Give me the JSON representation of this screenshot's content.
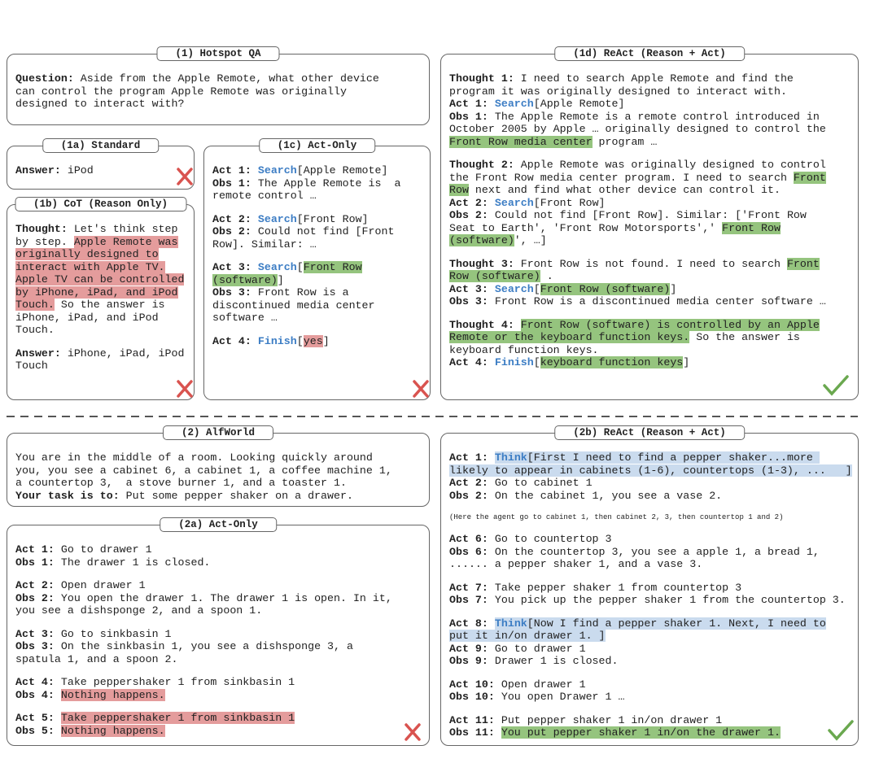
{
  "panels": {
    "hotspot_qa": {
      "title": "(1) Hotspot QA",
      "paragraphs": [
        [
          [
            {
              "text": "Question:",
              "bold": true
            },
            " Aside from the Apple Remote, what other device"
          ],
          [
            "can control the program Apple Remote was originally"
          ],
          [
            "designed to interact with?"
          ]
        ]
      ]
    },
    "standard": {
      "title": "(1a) Standard",
      "paragraphs": [
        [
          [
            {
              "text": "Answer:",
              "bold": true
            },
            " iPod"
          ]
        ]
      ]
    },
    "cot": {
      "title": "(1b) CoT (Reason Only)",
      "paragraphs": [
        [
          [
            {
              "text": "Thought:",
              "bold": true
            },
            " Let's think step"
          ],
          [
            "by step. ",
            {
              "text": "Apple Remote was",
              "highlight": "red"
            }
          ],
          [
            {
              "text": "originally designed to",
              "highlight": "red"
            }
          ],
          [
            {
              "text": "interact with Apple TV.",
              "highlight": "red"
            }
          ],
          [
            {
              "text": "Apple TV can be controlled",
              "highlight": "red"
            }
          ],
          [
            {
              "text": "by iPhone, iPad, and iPod",
              "highlight": "red"
            }
          ],
          [
            {
              "text": "Touch.",
              "highlight": "red"
            },
            " So the answer is"
          ],
          [
            "iPhone, iPad, and iPod"
          ],
          [
            "Touch."
          ]
        ],
        [
          [
            {
              "text": "Answer:",
              "bold": true
            },
            " iPhone, iPad, iPod"
          ],
          [
            "Touch"
          ]
        ]
      ]
    },
    "act_only_qa": {
      "title": "(1c) Act-Only",
      "paragraphs": [
        [
          [
            {
              "text": "Act 1: ",
              "bold": true
            },
            {
              "text": "Search",
              "blue": true
            },
            "[Apple Remote]"
          ],
          [
            {
              "text": "Obs 1:",
              "bold": true
            },
            " The Apple Remote is  a"
          ],
          [
            "remote control …"
          ]
        ],
        [
          [
            {
              "text": "Act 2: ",
              "bold": true
            },
            {
              "text": "Search",
              "blue": true
            },
            "[Front Row]"
          ],
          [
            {
              "text": "Obs 2:",
              "bold": true
            },
            " Could not find [Front"
          ],
          [
            "Row]. Similar: …"
          ]
        ],
        [
          [
            {
              "text": "Act 3: ",
              "bold": true
            },
            {
              "text": "Search",
              "blue": true
            },
            "[",
            {
              "text": "Front Row",
              "highlight": "green"
            }
          ],
          [
            {
              "text": "(software)",
              "highlight": "green"
            },
            "]"
          ],
          [
            {
              "text": "Obs 3:",
              "bold": true
            },
            " Front Row is a"
          ],
          [
            "discontinued media center"
          ],
          [
            "software …"
          ]
        ],
        [
          [
            {
              "text": "Act 4: ",
              "bold": true
            },
            {
              "text": "Finish",
              "blue": true
            },
            "[",
            {
              "text": "yes",
              "highlight": "red"
            },
            "]"
          ]
        ]
      ]
    },
    "react_qa": {
      "title": "(1d) ReAct (Reason + Act)",
      "paragraphs": [
        [
          [
            {
              "text": "Thought 1:",
              "bold": true
            },
            " I need to search Apple Remote and find the"
          ],
          [
            "program it was originally designed to interact with."
          ],
          [
            {
              "text": "Act 1: ",
              "bold": true
            },
            {
              "text": "Search",
              "blue": true
            },
            "[Apple Remote]"
          ],
          [
            {
              "text": "Obs 1:",
              "bold": true
            },
            " The Apple Remote is a remote control introduced in"
          ],
          [
            "October 2005 by Apple … originally designed to control the"
          ],
          [
            {
              "text": "Front Row media center",
              "highlight": "green"
            },
            " program …"
          ]
        ],
        [
          [
            {
              "text": "Thought 2:",
              "bold": true
            },
            " Apple Remote was originally designed to control"
          ],
          [
            "the Front Row media center program. I need to search ",
            {
              "text": "Front",
              "highlight": "green"
            }
          ],
          [
            {
              "text": "Row",
              "highlight": "green"
            },
            " next and find what other device can control it."
          ],
          [
            {
              "text": "Act 2: ",
              "bold": true
            },
            {
              "text": "Search",
              "blue": true
            },
            "[Front Row]"
          ],
          [
            {
              "text": "Obs 2:",
              "bold": true
            },
            " Could not find [Front Row]. Similar: ['Front Row"
          ],
          [
            "Seat to Earth', 'Front Row Motorsports',' ",
            {
              "text": "Front Row",
              "highlight": "green"
            }
          ],
          [
            {
              "text": "(software)",
              "highlight": "green"
            },
            "', …]"
          ]
        ],
        [
          [
            {
              "text": "Thought 3:",
              "bold": true
            },
            " Front Row is not found. I need to search ",
            {
              "text": "Front",
              "highlight": "green"
            }
          ],
          [
            {
              "text": "Row (software)",
              "highlight": "green"
            },
            " ."
          ],
          [
            {
              "text": "Act 3: ",
              "bold": true
            },
            {
              "text": "Search",
              "blue": true
            },
            "[",
            {
              "text": "Front Row (software)",
              "highlight": "green"
            },
            "]"
          ],
          [
            {
              "text": "Obs 3:",
              "bold": true
            },
            " Front Row is a discontinued media center software …"
          ]
        ],
        [
          [
            {
              "text": "Thought 4:",
              "bold": true
            },
            " ",
            {
              "text": "Front Row (software) is controlled by an Apple",
              "highlight": "green"
            }
          ],
          [
            {
              "text": "Remote or the keyboard function keys.",
              "highlight": "green"
            },
            " So the answer is"
          ],
          [
            "keyboard function keys."
          ],
          [
            {
              "text": "Act 4: ",
              "bold": true
            },
            {
              "text": "Finish",
              "blue": true
            },
            "[",
            {
              "text": "keyboard function keys",
              "highlight": "green"
            },
            "]"
          ]
        ]
      ]
    },
    "alfworld": {
      "title": "(2) AlfWorld",
      "paragraphs": [
        [
          [
            "You are in the middle of a room. Looking quickly around"
          ],
          [
            "you, you see a cabinet 6, a cabinet 1, a coffee machine 1,"
          ],
          [
            "a countertop 3,  a stove burner 1, and a toaster 1."
          ],
          [
            {
              "text": "Your task is to:",
              "bold": true
            },
            " Put some pepper shaker on a drawer."
          ]
        ]
      ]
    },
    "act_only_alf": {
      "title": "(2a) Act-Only",
      "paragraphs": [
        [
          [
            {
              "text": "Act 1:",
              "bold": true
            },
            " Go to drawer 1"
          ],
          [
            {
              "text": "Obs 1:",
              "bold": true
            },
            " The drawer 1 is closed."
          ]
        ],
        [
          [
            {
              "text": "Act 2:",
              "bold": true
            },
            " Open drawer 1"
          ],
          [
            {
              "text": "Obs 2:",
              "bold": true
            },
            " You open the drawer 1. The drawer 1 is open. In it,"
          ],
          [
            "you see a dishsponge 2, and a spoon 1."
          ]
        ],
        [
          [
            {
              "text": "Act 3:",
              "bold": true
            },
            " Go to sinkbasin 1"
          ],
          [
            {
              "text": "Obs 3:",
              "bold": true
            },
            " On the sinkbasin 1, you see a dishsponge 3, a"
          ],
          [
            "spatula 1, and a spoon 2."
          ]
        ],
        [
          [
            {
              "text": "Act 4:",
              "bold": true
            },
            " Take peppershaker 1 from sinkbasin 1"
          ],
          [
            {
              "text": "Obs 4:",
              "bold": true
            },
            " ",
            {
              "text": "Nothing happens.",
              "highlight": "red"
            }
          ]
        ],
        [
          [
            {
              "text": "Act 5:",
              "bold": true
            },
            " ",
            {
              "text": "Take peppershaker 1 from sinkbasin 1",
              "highlight": "red"
            }
          ],
          [
            {
              "text": "Obs 5:",
              "bold": true
            },
            " ",
            {
              "text": "Nothing happens.",
              "highlight": "red"
            }
          ]
        ]
      ]
    },
    "react_alf": {
      "title": "(2b) ReAct (Reason + Act)",
      "paragraphs": [
        [
          [
            {
              "text": "Act 1:",
              "bold": true
            },
            " ",
            {
              "text": "Think",
              "blue": true,
              "highlight": "blue"
            },
            {
              "text": "[First I need to find a pepper shaker...more ",
              "highlight": "blue"
            }
          ],
          [
            {
              "text": "likely to appear in cabinets (1-6), countertops (1-3), ...   ]",
              "highlight": "blue"
            }
          ],
          [
            {
              "text": "Act 2:",
              "bold": true
            },
            " Go to cabinet 1"
          ],
          [
            {
              "text": "Obs 2:",
              "bold": true
            },
            " On the cabinet 1, you see a vase 2."
          ]
        ],
        [
          [
            {
              "text": "(Here the agent go to cabinet 1, then cabinet 2, 3, then countertop 1 and 2)",
              "small": true
            }
          ]
        ],
        [
          [
            {
              "text": "Act 6:",
              "bold": true
            },
            " Go to countertop 3"
          ],
          [
            {
              "text": "Obs 6:",
              "bold": true
            },
            " On the countertop 3, you see a apple 1, a bread 1,"
          ],
          [
            "...... a pepper shaker 1, and a vase 3."
          ]
        ],
        [
          [
            {
              "text": "Act 7:",
              "bold": true
            },
            " Take pepper shaker 1 from countertop 3"
          ],
          [
            {
              "text": "Obs 7:",
              "bold": true
            },
            " You pick up the pepper shaker 1 from the countertop 3."
          ]
        ],
        [
          [
            {
              "text": "Act 8:",
              "bold": true
            },
            " ",
            {
              "text": "Think",
              "blue": true,
              "highlight": "blue"
            },
            {
              "text": "[Now I find a pepper shaker 1. Next, I need to",
              "highlight": "blue"
            }
          ],
          [
            {
              "text": "put it in/on drawer 1. ]",
              "highlight": "blue"
            }
          ],
          [
            {
              "text": "Act 9:",
              "bold": true
            },
            " Go to drawer 1"
          ],
          [
            {
              "text": "Obs 9:",
              "bold": true
            },
            " Drawer 1 is closed."
          ]
        ],
        [
          [
            {
              "text": "Act 10:",
              "bold": true
            },
            " Open drawer 1"
          ],
          [
            {
              "text": "Obs 10:",
              "bold": true
            },
            " You open Drawer 1 …"
          ]
        ],
        [
          [
            {
              "text": "Act 11:",
              "bold": true
            },
            " Put pepper shaker 1 in/on drawer 1"
          ],
          [
            {
              "text": "Obs 11:",
              "bold": true
            },
            " ",
            {
              "text": "You put pepper shaker 1 in/on the drawer 1.",
              "highlight": "green"
            }
          ]
        ]
      ]
    }
  }
}
